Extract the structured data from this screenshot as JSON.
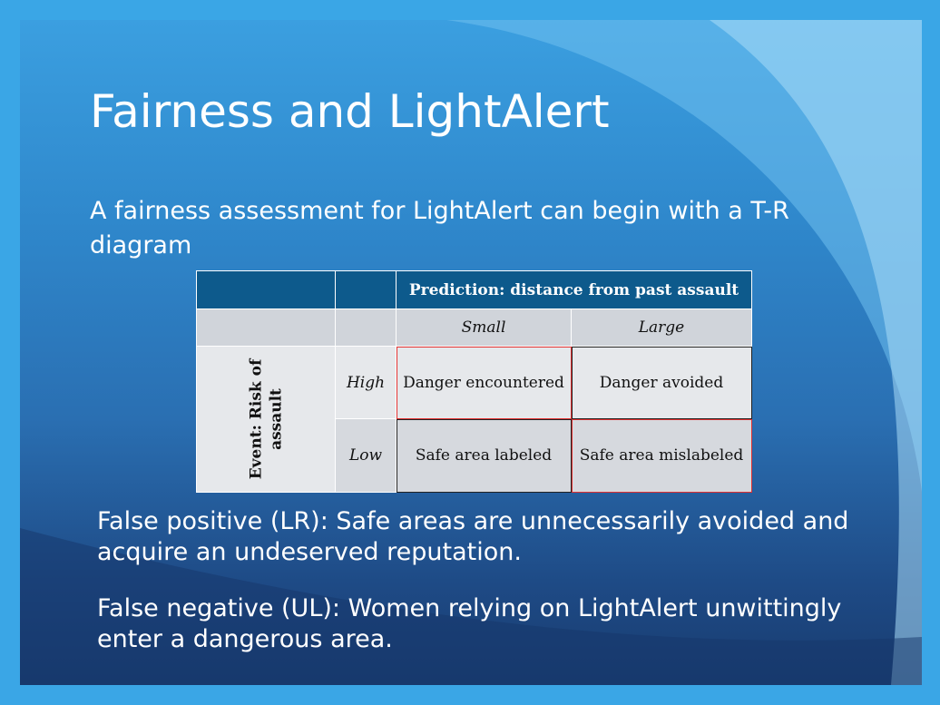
{
  "slide": {
    "title": "Fairness and LightAlert",
    "subtitle": "A fairness assessment for LightAlert can begin with a T-R diagram",
    "table": {
      "header": "Prediction: distance from past assault",
      "col_small": "Small",
      "col_large": "Large",
      "row_label_line1": "Event: Risk of",
      "row_label_line2": "assault",
      "row_high": "High",
      "row_low": "Low",
      "cell_high_small": "Danger encountered",
      "cell_high_large": "Danger avoided",
      "cell_low_small": "Safe area labeled",
      "cell_low_large": "Safe area mislabeled"
    },
    "bullet1": "False positive (LR): Safe areas are unnecessarily avoided and acquire an undeserved reputation.",
    "bullet2": "False negative (UL): Women relying on LightAlert unwittingly enter a dangerous area."
  }
}
